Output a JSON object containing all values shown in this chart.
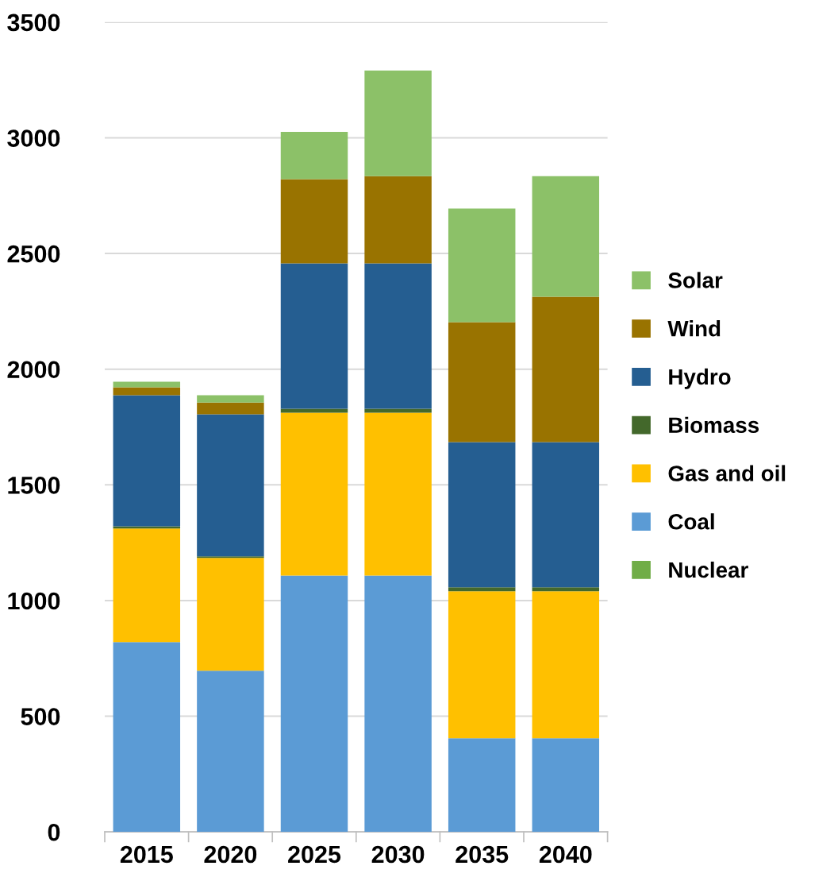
{
  "chart_data": {
    "type": "bar",
    "stacked": true,
    "categories": [
      "2015",
      "2020",
      "2025",
      "2030",
      "2035",
      "2040"
    ],
    "series": [
      {
        "name": "Nuclear",
        "color": "#70ad47",
        "values": [
          0,
          0,
          0,
          0,
          0,
          0
        ]
      },
      {
        "name": "Coal",
        "color": "#5b9bd5",
        "values": [
          820,
          697,
          1108,
          1108,
          405,
          405
        ]
      },
      {
        "name": "Gas and oil",
        "color": "#ffc000",
        "values": [
          491,
          487,
          704,
          704,
          635,
          635
        ]
      },
      {
        "name": "Biomass",
        "color": "#43682b",
        "values": [
          10,
          7,
          17,
          17,
          17,
          17
        ]
      },
      {
        "name": "Hydro",
        "color": "#255e91",
        "values": [
          566,
          614,
          628,
          628,
          628,
          628
        ]
      },
      {
        "name": "Wind",
        "color": "#997300",
        "values": [
          35,
          51,
          364,
          377,
          518,
          628
        ]
      },
      {
        "name": "Solar",
        "color": "#8cc168",
        "values": [
          24,
          31,
          205,
          457,
          491,
          521
        ]
      }
    ],
    "ylim": [
      0,
      3500
    ],
    "yticks": [
      0,
      500,
      1000,
      1500,
      2000,
      2500,
      3000,
      3500
    ],
    "grid": "y",
    "legend": "right"
  }
}
